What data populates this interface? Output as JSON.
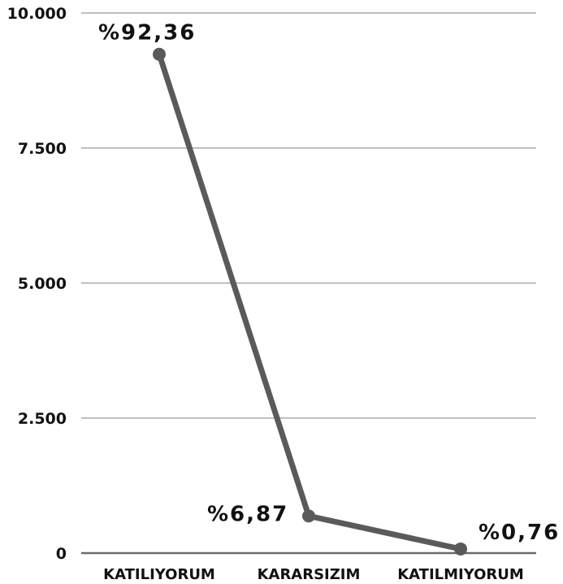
{
  "chart_data": {
    "type": "line",
    "categories": [
      "KATILIYORUM",
      "KARARSIZIM",
      "KATILMIYORUM"
    ],
    "values": [
      9236,
      687,
      76
    ],
    "data_labels": [
      "%92,36",
      "%6,87",
      "%0,76"
    ],
    "y_ticks": [
      {
        "value": 0,
        "label": "0"
      },
      {
        "value": 2500,
        "label": "2.500"
      },
      {
        "value": 5000,
        "label": "5.000"
      },
      {
        "value": 7500,
        "label": "7.500"
      },
      {
        "value": 10000,
        "label": "10.000"
      }
    ],
    "ylim": [
      0,
      10000
    ],
    "grid": true,
    "legend": "none",
    "colors": {
      "line": "#5a5a5a",
      "grid": "#c0c0c0",
      "axis": "#6a6a6a",
      "text": "#111111"
    }
  }
}
